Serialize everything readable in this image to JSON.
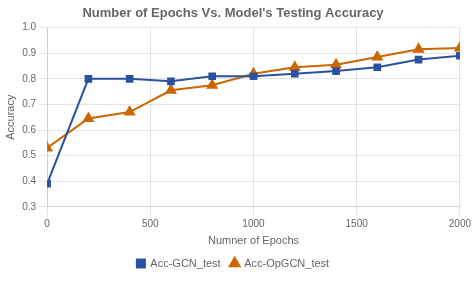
{
  "chart_data": {
    "type": "line",
    "title": "Number of Epochs Vs. Model's Testing Accuracy",
    "x_label": "Numner of Epochs",
    "y_label": "Accuracy",
    "x": [
      0,
      200,
      400,
      600,
      800,
      1000,
      1200,
      1400,
      1600,
      1800,
      2000
    ],
    "series": [
      {
        "name": "Acc-GCN_test",
        "color": "#2a52a0",
        "marker": "square",
        "values": [
          0.39,
          0.8,
          0.8,
          0.79,
          0.81,
          0.81,
          0.82,
          0.83,
          0.845,
          0.875,
          0.89
        ]
      },
      {
        "name": "Acc-OpGCN_test",
        "color": "#cc6600",
        "marker": "triangle",
        "values": [
          0.53,
          0.645,
          0.67,
          0.755,
          0.775,
          0.82,
          0.845,
          0.855,
          0.885,
          0.915,
          0.92
        ]
      }
    ],
    "xlim": [
      0,
      2000
    ],
    "xticks": [
      0,
      500,
      1000,
      1500,
      2000
    ],
    "ylim": [
      0.3,
      1.0
    ],
    "yticks": [
      0.3,
      0.4,
      0.5,
      0.6,
      0.7,
      0.8,
      0.9,
      {
        "value": 1.0,
        "label": "1.0"
      }
    ],
    "grid": true,
    "legend": "bottom"
  }
}
